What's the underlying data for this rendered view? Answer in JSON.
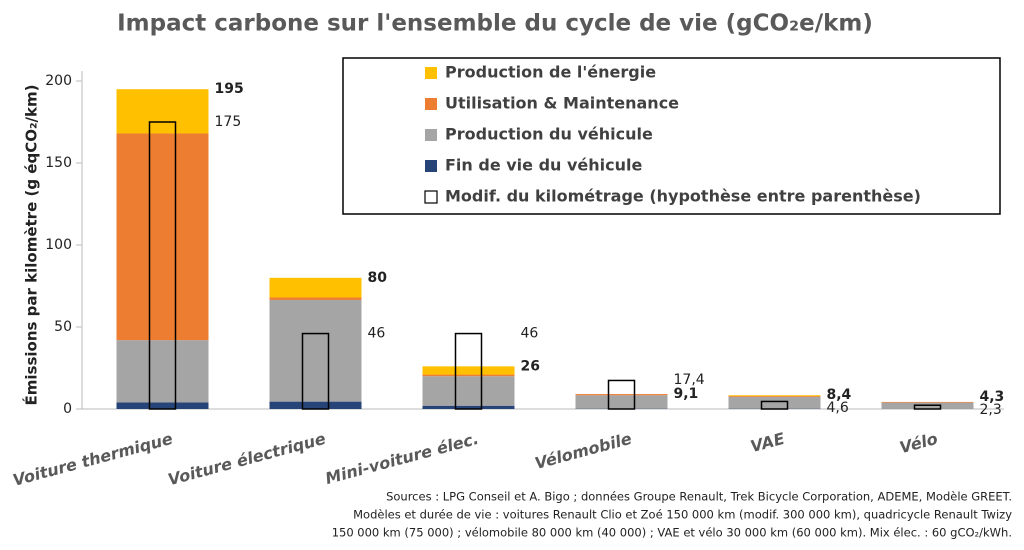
{
  "chart_data": {
    "type": "stacked-bar",
    "title": "Impact carbone sur l'ensemble du cycle de vie (gCO₂e/km)",
    "y_label": "Émissions par kilomètre (g éqCO₂/km)",
    "categories": [
      "Voiture thermique",
      "Voiture électrique",
      "Mini-voiture élec.",
      "Vélomobile",
      "VAE",
      "Vélo"
    ],
    "series": [
      {
        "name": "Production de l'énergie",
        "color": "#ffc000",
        "values": [
          27,
          12,
          5,
          0,
          0.5,
          0
        ]
      },
      {
        "name": "Utilisation & Maintenance",
        "color": "#ed7d31",
        "values": [
          126,
          1.5,
          1,
          0.7,
          0.5,
          0.4
        ]
      },
      {
        "name": "Production du véhicule",
        "color": "#a5a5a5",
        "values": [
          38,
          62,
          18,
          8.2,
          7.2,
          3.8
        ]
      },
      {
        "name": "Fin de vie du véhicule",
        "color": "#264478",
        "values": [
          4,
          4.5,
          2,
          0.2,
          0.2,
          0.1
        ]
      }
    ],
    "totals": {
      "values": [
        195,
        80,
        26,
        9.1,
        8.4,
        4.3
      ],
      "value_labels": [
        "195",
        "80",
        "26",
        "9,1",
        "8,4",
        "4,3"
      ]
    },
    "modified": {
      "name": "Modif. du kilométrage (hypothèse entre parenthèse)",
      "values": [
        175,
        46,
        46,
        17.4,
        4.6,
        2.3
      ],
      "value_labels": [
        "175",
        "46",
        "46",
        "17,4",
        "4,6",
        "2,3"
      ]
    },
    "ylim": [
      0,
      200
    ],
    "yticks": [
      0,
      50,
      100,
      150,
      200
    ],
    "legend": "top-right",
    "sources": [
      "Sources : LPG Conseil et A. Bigo ; données Groupe Renault, Trek Bicycle Corporation, ADEME, Modèle GREET.",
      "Modèles et durée de vie : voitures Renault Clio et Zoé 150 000 km (modif. 300 000 km), quadricycle Renault Twizy",
      "150 000 km (75 000) ; vélomobile 80 000 km (40 000) ; VAE et vélo 30 000 km (60 000 km). Mix élec. : 60 gCO₂/kWh."
    ]
  }
}
